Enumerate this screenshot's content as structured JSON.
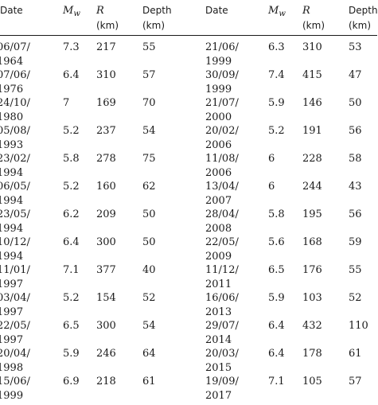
{
  "headers": {
    "date": "Date",
    "mw_base": "M",
    "mw_sub": "w",
    "r": "R",
    "r_unit": "(km)",
    "depth": "Depth",
    "depth_unit": "(km)"
  },
  "rows": [
    {
      "left": {
        "date1": "06/07/",
        "date2": "1964",
        "mw": "7.3",
        "r": "217",
        "depth": "55"
      },
      "right": {
        "date1": "21/06/",
        "date2": "1999",
        "mw": "6.3",
        "r": "310",
        "depth": "53"
      }
    },
    {
      "left": {
        "date1": "07/06/",
        "date2": "1976",
        "mw": "6.4",
        "r": "310",
        "depth": "57"
      },
      "right": {
        "date1": "30/09/",
        "date2": "1999",
        "mw": "7.4",
        "r": "415",
        "depth": "47"
      }
    },
    {
      "left": {
        "date1": "24/10/",
        "date2": "1980",
        "mw": "7",
        "r": "169",
        "depth": "70"
      },
      "right": {
        "date1": "21/07/",
        "date2": "2000",
        "mw": "5.9",
        "r": "146",
        "depth": "50"
      }
    },
    {
      "left": {
        "date1": "05/08/",
        "date2": "1993",
        "mw": "5.2",
        "r": "237",
        "depth": "54"
      },
      "right": {
        "date1": "20/02/",
        "date2": "2006",
        "mw": "5.2",
        "r": "191",
        "depth": "56"
      }
    },
    {
      "left": {
        "date1": "23/02/",
        "date2": "1994",
        "mw": "5.8",
        "r": "278",
        "depth": "75"
      },
      "right": {
        "date1": "11/08/",
        "date2": "2006",
        "mw": "6",
        "r": "228",
        "depth": "58"
      }
    },
    {
      "left": {
        "date1": "06/05/",
        "date2": "1994",
        "mw": "5.2",
        "r": "160",
        "depth": "62"
      },
      "right": {
        "date1": "13/04/",
        "date2": "2007",
        "mw": "6",
        "r": "244",
        "depth": "43"
      }
    },
    {
      "left": {
        "date1": "23/05/",
        "date2": "1994",
        "mw": "6.2",
        "r": "209",
        "depth": "50"
      },
      "right": {
        "date1": "28/04/",
        "date2": "2008",
        "mw": "5.8",
        "r": "195",
        "depth": "56"
      }
    },
    {
      "left": {
        "date1": "10/12/",
        "date2": "1994",
        "mw": "6.4",
        "r": "300",
        "depth": "50"
      },
      "right": {
        "date1": "22/05/",
        "date2": "2009",
        "mw": "5.6",
        "r": "168",
        "depth": "59"
      }
    },
    {
      "left": {
        "date1": "11/01/",
        "date2": "1997",
        "mw": "7.1",
        "r": "377",
        "depth": "40"
      },
      "right": {
        "date1": "11/12/",
        "date2": "2011",
        "mw": "6.5",
        "r": "176",
        "depth": "55"
      }
    },
    {
      "left": {
        "date1": "03/04/",
        "date2": "1997",
        "mw": "5.2",
        "r": "154",
        "depth": "52"
      },
      "right": {
        "date1": "16/06/",
        "date2": "2013",
        "mw": "5.9",
        "r": "103",
        "depth": "52"
      }
    },
    {
      "left": {
        "date1": "22/05/",
        "date2": "1997",
        "mw": "6.5",
        "r": "300",
        "depth": "54"
      },
      "right": {
        "date1": "29/07/",
        "date2": "2014",
        "mw": "6.4",
        "r": "432",
        "depth": "110"
      }
    },
    {
      "left": {
        "date1": "20/04/",
        "date2": "1998",
        "mw": "5.9",
        "r": "246",
        "depth": "64"
      },
      "right": {
        "date1": "20/03/",
        "date2": "2015",
        "mw": "6.4",
        "r": "178",
        "depth": "61"
      }
    },
    {
      "left": {
        "date1": "15/06/",
        "date2": "1999",
        "mw": "6.9",
        "r": "218",
        "depth": "61"
      },
      "right": {
        "date1": "19/09/",
        "date2": "2017",
        "mw": "7.1",
        "r": "105",
        "depth": "57"
      }
    }
  ]
}
